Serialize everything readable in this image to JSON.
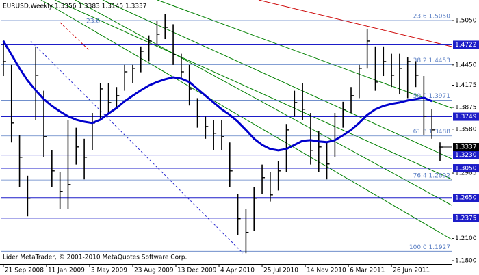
{
  "chart_data": {
    "type": "ohlc",
    "title": "EURUSD,Weekly  1.3356 1.3383 1.3145 1.3337",
    "footer": "Lider MetaTrader, © 2001-2010 MetaQuotes Software Corp.",
    "x": [
      "2008-09-21",
      "2008-10-12",
      "2008-11-02",
      "2008-11-23",
      "2008-12-14",
      "2009-01-04",
      "2009-01-25",
      "2009-02-15",
      "2009-03-08",
      "2009-03-29",
      "2009-04-19",
      "2009-05-10",
      "2009-05-31",
      "2009-06-21",
      "2009-07-12",
      "2009-08-02",
      "2009-08-23",
      "2009-09-13",
      "2009-10-04",
      "2009-10-25",
      "2009-11-15",
      "2009-12-06",
      "2009-12-27",
      "2010-01-17",
      "2010-02-07",
      "2010-02-28",
      "2010-03-21",
      "2010-04-11",
      "2010-05-02",
      "2010-05-23",
      "2010-06-13",
      "2010-07-04",
      "2010-07-25",
      "2010-08-15",
      "2010-09-05",
      "2010-09-26",
      "2010-10-17",
      "2010-11-07",
      "2010-11-28",
      "2010-12-19",
      "2011-01-09",
      "2011-01-30",
      "2011-02-20",
      "2011-03-13",
      "2011-04-03",
      "2011-04-24",
      "2011-05-15",
      "2011-06-05",
      "2011-06-26",
      "2011-07-17",
      "2011-08-07",
      "2011-08-28",
      "2011-09-18",
      "2011-10-09",
      "2011-10-30"
    ],
    "high": [
      1.478,
      1.445,
      1.35,
      1.295,
      1.47,
      1.41,
      1.33,
      1.3,
      1.37,
      1.36,
      1.345,
      1.38,
      1.42,
      1.42,
      1.415,
      1.445,
      1.445,
      1.47,
      1.485,
      1.505,
      1.514,
      1.5,
      1.46,
      1.445,
      1.4,
      1.375,
      1.37,
      1.37,
      1.34,
      1.27,
      1.25,
      1.28,
      1.31,
      1.3,
      1.315,
      1.365,
      1.41,
      1.42,
      1.38,
      1.355,
      1.34,
      1.38,
      1.395,
      1.415,
      1.445,
      1.494,
      1.47,
      1.47,
      1.46,
      1.46,
      1.455,
      1.45,
      1.43,
      1.385,
      1.34
    ],
    "low": [
      1.43,
      1.34,
      1.28,
      1.24,
      1.37,
      1.32,
      1.28,
      1.25,
      1.25,
      1.31,
      1.29,
      1.33,
      1.37,
      1.38,
      1.385,
      1.41,
      1.42,
      1.435,
      1.45,
      1.47,
      1.48,
      1.445,
      1.425,
      1.39,
      1.36,
      1.345,
      1.33,
      1.33,
      1.28,
      1.215,
      1.19,
      1.22,
      1.27,
      1.26,
      1.275,
      1.3,
      1.375,
      1.37,
      1.31,
      1.3,
      1.29,
      1.32,
      1.36,
      1.38,
      1.4,
      1.44,
      1.41,
      1.43,
      1.415,
      1.405,
      1.4,
      1.415,
      1.35,
      1.345,
      1.3145
    ],
    "close": [
      1.4495,
      1.3663,
      1.32,
      1.2645,
      1.431,
      1.3478,
      1.3015,
      1.2738,
      1.283,
      1.3339,
      1.32,
      1.3663,
      1.4125,
      1.394,
      1.4033,
      1.4356,
      1.4403,
      1.4634,
      1.4773,
      1.4865,
      1.4958,
      1.4588,
      1.4356,
      1.4125,
      1.3755,
      1.3616,
      1.3524,
      1.3478,
      1.3015,
      1.2368,
      1.2183,
      1.2645,
      1.2923,
      1.2691,
      1.3015,
      1.357,
      1.394,
      1.3848,
      1.3293,
      1.3339,
      1.3108,
      1.3755,
      1.3848,
      1.4033,
      1.4403,
      1.4773,
      1.4218,
      1.4495,
      1.431,
      1.4403,
      1.4495,
      1.431,
      1.3755,
      1.357,
      1.3337
    ],
    "ma": [
      1.4773,
      1.4588,
      1.4403,
      1.4236,
      1.4106,
      1.3986,
      1.3894,
      1.382,
      1.3755,
      1.3709,
      1.3681,
      1.3663,
      1.3709,
      1.3792,
      1.3866,
      1.3959,
      1.4033,
      1.4106,
      1.4171,
      1.4218,
      1.4255,
      1.4282,
      1.4264,
      1.4218,
      1.4125,
      1.4033,
      1.394,
      1.3848,
      1.3774,
      1.3681,
      1.357,
      1.345,
      1.3367,
      1.3311,
      1.3293,
      1.3311,
      1.3367,
      1.3422,
      1.3431,
      1.3413,
      1.3404,
      1.3431,
      1.3496,
      1.357,
      1.3663,
      1.3774,
      1.3848,
      1.3894,
      1.3922,
      1.394,
      1.3968,
      1.3987,
      1.4005,
      1.3959,
      null
    ],
    "bar_color": "#000000",
    "ma_color": "#0000cc",
    "level_color": "#1d1dc8",
    "fib_color": "#5b7fc4",
    "xlim": [
      "2008-09-14",
      "2011-12-01"
    ],
    "ylim": [
      1.1754,
      1.5328
    ],
    "xticks": [
      {
        "value": "2008-09-21",
        "label": "21 Sep 2008"
      },
      {
        "value": "2009-01-11",
        "label": "11 Jan 2009"
      },
      {
        "value": "2009-05-03",
        "label": "3 May 2009"
      },
      {
        "value": "2009-08-23",
        "label": "23 Aug 2009"
      },
      {
        "value": "2009-12-13",
        "label": "13 Dec 2009"
      },
      {
        "value": "2010-04-04",
        "label": "4 Apr 2010"
      },
      {
        "value": "2010-07-25",
        "label": "25 Jul 2010"
      },
      {
        "value": "2010-11-14",
        "label": "14 Nov 2010"
      },
      {
        "value": "2011-03-06",
        "label": "6 Mar 2011"
      },
      {
        "value": "2011-06-26",
        "label": "26 Jun 2011"
      }
    ],
    "yticks": [
      {
        "value": 1.505,
        "label": "1.5050"
      },
      {
        "value": 1.445,
        "label": "1.4450"
      },
      1.4175,
      1.3875,
      {
        "value": 1.358,
        "label": "1.3580"
      },
      1.2985,
      {
        "value": 1.21,
        "label": "1.2100"
      },
      {
        "value": 1.18,
        "label": "1.1800"
      }
    ],
    "levels": [
      1.4722,
      1.3749,
      {
        "value": 1.323,
        "label": "1.3230"
      },
      {
        "value": 1.305,
        "label": "1.3050"
      },
      {
        "value": 1.265,
        "label": "1.2650"
      },
      1.2375
    ],
    "last_price": 1.3337,
    "fib_start_label": "23.6",
    "fib": [
      {
        "value": 1.505,
        "label": "23.6 1.5050"
      },
      {
        "value": 1.4453,
        "label": "38.2 1.4453"
      },
      {
        "value": 1.3971,
        "label": "50.0 1.3971"
      },
      {
        "value": 1.3488,
        "label": "61.8 1.3488"
      },
      {
        "value": 1.2892,
        "label": "76.4 1.2892"
      },
      {
        "value": 1.1927,
        "label": "100.0 1.1927"
      }
    ]
  }
}
